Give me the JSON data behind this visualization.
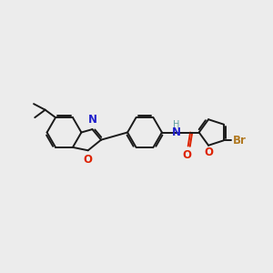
{
  "bg_color": "#ececec",
  "bond_color": "#1a1a1a",
  "n_color": "#2020cc",
  "o_color": "#dd2200",
  "br_color": "#b07820",
  "h_color": "#5f9ea0",
  "lw": 1.4,
  "fs": 8.5,
  "dbo": 0.065,
  "xlim": [
    0,
    10
  ],
  "ylim": [
    0,
    10
  ]
}
